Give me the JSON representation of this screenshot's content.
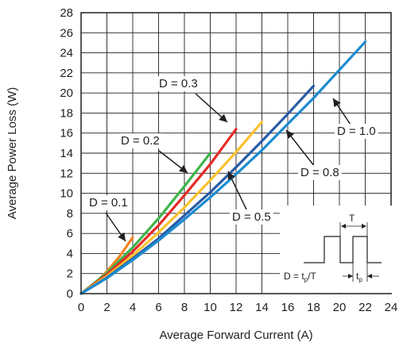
{
  "chart_data": {
    "type": "line",
    "title": "",
    "xlabel": "Average Forward Current (A)",
    "ylabel": "Average Power Loss (W)",
    "xlim": [
      0,
      24
    ],
    "ylim": [
      0,
      28
    ],
    "x_ticks": [
      0,
      2,
      4,
      6,
      8,
      10,
      12,
      14,
      16,
      18,
      20,
      22,
      24
    ],
    "y_ticks": [
      0,
      2,
      4,
      6,
      8,
      10,
      12,
      14,
      16,
      18,
      20,
      22,
      24,
      26,
      28
    ],
    "grid": true,
    "series": [
      {
        "name": "D = 0.1",
        "color": "#f58220",
        "x": [
          0,
          1,
          2,
          3,
          4
        ],
        "y": [
          0,
          0.95,
          2.2,
          3.75,
          5.6
        ]
      },
      {
        "name": "D = 0.2",
        "color": "#3db54a",
        "x": [
          0,
          2,
          4,
          6,
          8,
          10
        ],
        "y": [
          0,
          2.05,
          4.6,
          7.5,
          10.7,
          14.0
        ]
      },
      {
        "name": "D = 0.3",
        "color": "#e42b26",
        "x": [
          0,
          2,
          4,
          6,
          8,
          10,
          12
        ],
        "y": [
          0,
          1.9,
          4.2,
          6.8,
          9.8,
          12.9,
          16.4
        ]
      },
      {
        "name": "D = 0.5",
        "color": "#fdc12e",
        "x": [
          0,
          2,
          4,
          6,
          8,
          10,
          12,
          14
        ],
        "y": [
          0,
          1.75,
          3.8,
          6.1,
          8.6,
          11.3,
          14.1,
          17.1
        ]
      },
      {
        "name": "D = 0.8",
        "color": "#2a5ba6",
        "x": [
          0,
          2,
          4,
          6,
          8,
          10,
          12,
          14,
          16,
          18
        ],
        "y": [
          0,
          1.6,
          3.5,
          5.5,
          7.8,
          10.1,
          12.6,
          15.2,
          17.9,
          20.7
        ]
      },
      {
        "name": "D = 1.0",
        "color": "#1b8bd0",
        "x": [
          0,
          2,
          4,
          6,
          8,
          10,
          12,
          14,
          16,
          18,
          20,
          22
        ],
        "y": [
          0,
          1.55,
          3.35,
          5.3,
          7.4,
          9.6,
          11.9,
          14.3,
          16.9,
          19.5,
          22.3,
          25.1
        ]
      }
    ],
    "annotations": [
      {
        "text": "D = 0.1",
        "series": "D = 0.1"
      },
      {
        "text": "D = 0.2",
        "series": "D = 0.2"
      },
      {
        "text": "D = 0.3",
        "series": "D = 0.3"
      },
      {
        "text": "D = 0.5",
        "series": "D = 0.5"
      },
      {
        "text": "D = 0.8",
        "series": "D = 0.8"
      },
      {
        "text": "D = 1.0",
        "series": "D = 1.0"
      }
    ],
    "inset": {
      "period_label": "T",
      "duty_label_main": "D = t",
      "duty_label_sub": "p",
      "duty_label_end": "/T",
      "pulse_label_main": "t",
      "pulse_label_sub": "p"
    }
  }
}
